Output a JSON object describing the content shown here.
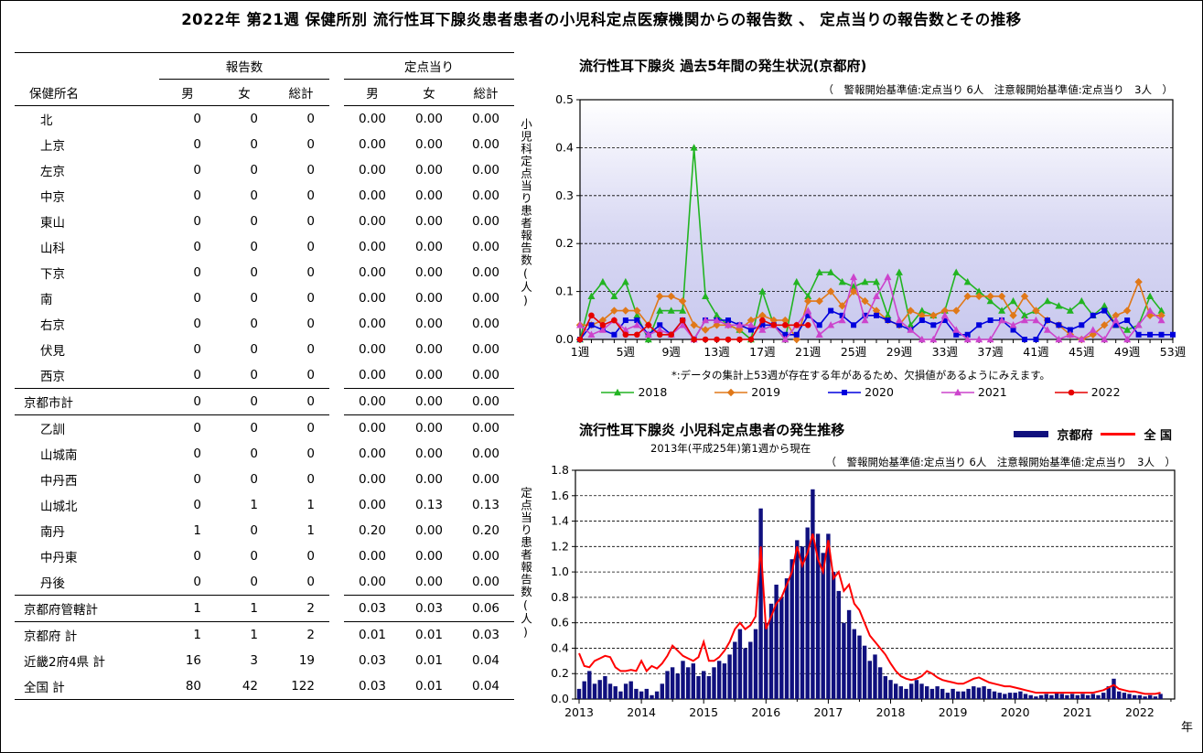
{
  "page_title": "2022年 第21週 保健所別 流行性耳下腺炎患者患者の小児科定点医療機関からの報告数 、 定点当りの報告数とその推移",
  "table": {
    "group_headers": {
      "reports": "報告数",
      "per_sentinel": "定点当り"
    },
    "col_headers": {
      "name": "保健所名",
      "male": "男",
      "female": "女",
      "total": "総計"
    },
    "rows": [
      {
        "label": "北",
        "indent": true,
        "sep": false,
        "values": [
          "0",
          "0",
          "0",
          "0.00",
          "0.00",
          "0.00"
        ]
      },
      {
        "label": "上京",
        "indent": true,
        "sep": false,
        "values": [
          "0",
          "0",
          "0",
          "0.00",
          "0.00",
          "0.00"
        ]
      },
      {
        "label": "左京",
        "indent": true,
        "sep": false,
        "values": [
          "0",
          "0",
          "0",
          "0.00",
          "0.00",
          "0.00"
        ]
      },
      {
        "label": "中京",
        "indent": true,
        "sep": false,
        "values": [
          "0",
          "0",
          "0",
          "0.00",
          "0.00",
          "0.00"
        ]
      },
      {
        "label": "東山",
        "indent": true,
        "sep": false,
        "values": [
          "0",
          "0",
          "0",
          "0.00",
          "0.00",
          "0.00"
        ]
      },
      {
        "label": "山科",
        "indent": true,
        "sep": false,
        "values": [
          "0",
          "0",
          "0",
          "0.00",
          "0.00",
          "0.00"
        ]
      },
      {
        "label": "下京",
        "indent": true,
        "sep": false,
        "values": [
          "0",
          "0",
          "0",
          "0.00",
          "0.00",
          "0.00"
        ]
      },
      {
        "label": "南",
        "indent": true,
        "sep": false,
        "values": [
          "0",
          "0",
          "0",
          "0.00",
          "0.00",
          "0.00"
        ]
      },
      {
        "label": "右京",
        "indent": true,
        "sep": false,
        "values": [
          "0",
          "0",
          "0",
          "0.00",
          "0.00",
          "0.00"
        ]
      },
      {
        "label": "伏見",
        "indent": true,
        "sep": false,
        "values": [
          "0",
          "0",
          "0",
          "0.00",
          "0.00",
          "0.00"
        ]
      },
      {
        "label": "西京",
        "indent": true,
        "sep": false,
        "values": [
          "0",
          "0",
          "0",
          "0.00",
          "0.00",
          "0.00"
        ]
      },
      {
        "label": "京都市計",
        "indent": false,
        "sep": true,
        "values": [
          "0",
          "0",
          "0",
          "0.00",
          "0.00",
          "0.00"
        ]
      },
      {
        "label": "乙訓",
        "indent": true,
        "sep": true,
        "values": [
          "0",
          "0",
          "0",
          "0.00",
          "0.00",
          "0.00"
        ]
      },
      {
        "label": "山城南",
        "indent": true,
        "sep": false,
        "values": [
          "0",
          "0",
          "0",
          "0.00",
          "0.00",
          "0.00"
        ]
      },
      {
        "label": "中丹西",
        "indent": true,
        "sep": false,
        "values": [
          "0",
          "0",
          "0",
          "0.00",
          "0.00",
          "0.00"
        ]
      },
      {
        "label": "山城北",
        "indent": true,
        "sep": false,
        "values": [
          "0",
          "1",
          "1",
          "0.00",
          "0.13",
          "0.13"
        ]
      },
      {
        "label": "南丹",
        "indent": true,
        "sep": false,
        "values": [
          "1",
          "0",
          "1",
          "0.20",
          "0.00",
          "0.20"
        ]
      },
      {
        "label": "中丹東",
        "indent": true,
        "sep": false,
        "values": [
          "0",
          "0",
          "0",
          "0.00",
          "0.00",
          "0.00"
        ]
      },
      {
        "label": "丹後",
        "indent": true,
        "sep": false,
        "values": [
          "0",
          "0",
          "0",
          "0.00",
          "0.00",
          "0.00"
        ]
      },
      {
        "label": "京都府管轄計",
        "indent": false,
        "sep": true,
        "values": [
          "1",
          "1",
          "2",
          "0.03",
          "0.03",
          "0.06"
        ]
      },
      {
        "label": "京都府 計",
        "indent": false,
        "sep": true,
        "values": [
          "1",
          "1",
          "2",
          "0.01",
          "0.01",
          "0.03"
        ]
      },
      {
        "label": "近畿2府4県 計",
        "indent": false,
        "sep": false,
        "values": [
          "16",
          "3",
          "19",
          "0.03",
          "0.01",
          "0.04"
        ]
      },
      {
        "label": "全国 計",
        "indent": false,
        "sep": false,
        "values": [
          "80",
          "42",
          "122",
          "0.03",
          "0.01",
          "0.04"
        ]
      }
    ]
  },
  "chart_data": [
    {
      "type": "line",
      "title": "流行性耳下腺炎 過去5年間の発生状況(京都府)",
      "note": "（　警報開始基準値:定点当り 6人　注意報開始基準値:定点当り　3人　）",
      "ylabel": "小児科定点当り患者報告数(人)",
      "footnote": "*:データの集計上53週が存在する年があるため、欠損値があるようにみえます。",
      "ylim": [
        0,
        0.5
      ],
      "yticks": [
        0.0,
        0.1,
        0.2,
        0.3,
        0.4,
        0.5
      ],
      "x_unit": "week 1-53",
      "x_tick_labels": [
        "1週",
        "5週",
        "9週",
        "13週",
        "17週",
        "21週",
        "25週",
        "29週",
        "33週",
        "37週",
        "41週",
        "45週",
        "49週",
        "53週"
      ],
      "grid": "horizontal-dashed",
      "legend_position": "bottom",
      "plot_bg_gradient": [
        "#ffffff",
        "#d8d8f3",
        "#c9c9ee"
      ],
      "series": [
        {
          "name": "2018",
          "color": "#22b422",
          "marker": "triangle",
          "values": [
            0.0,
            0.09,
            0.12,
            0.09,
            0.12,
            0.05,
            0.0,
            0.06,
            0.06,
            0.06,
            0.4,
            0.09,
            0.05,
            0.03,
            0.02,
            0.0,
            0.1,
            0.03,
            0.0,
            0.12,
            0.09,
            0.14,
            0.14,
            0.12,
            0.11,
            0.12,
            0.12,
            0.05,
            0.14,
            0.03,
            0.06,
            0.05,
            0.06,
            0.14,
            0.12,
            0.1,
            0.08,
            0.06,
            0.08,
            0.05,
            0.06,
            0.08,
            0.07,
            0.06,
            0.08,
            0.05,
            0.07,
            0.03,
            0.02,
            0.03,
            0.09,
            0.06
          ]
        },
        {
          "name": "2019",
          "color": "#e07818",
          "marker": "diamond",
          "values": [
            0.03,
            0.03,
            0.04,
            0.06,
            0.06,
            0.06,
            0.03,
            0.09,
            0.09,
            0.08,
            0.03,
            0.02,
            0.03,
            0.03,
            0.02,
            0.04,
            0.05,
            0.04,
            0.04,
            0.0,
            0.08,
            0.08,
            0.1,
            0.07,
            0.1,
            0.08,
            0.06,
            0.04,
            0.03,
            0.06,
            0.05,
            0.05,
            0.06,
            0.06,
            0.09,
            0.09,
            0.09,
            0.09,
            0.05,
            0.09,
            0.06,
            0.04,
            0.03,
            0.01,
            0.0,
            0.01,
            0.03,
            0.05,
            0.06,
            0.12,
            0.05,
            0.05
          ]
        },
        {
          "name": "2020",
          "color": "#0000dd",
          "marker": "square",
          "values": [
            0.0,
            0.03,
            0.02,
            0.01,
            0.04,
            0.04,
            0.01,
            0.03,
            0.01,
            0.04,
            0.0,
            0.04,
            0.04,
            0.04,
            0.03,
            0.02,
            0.03,
            0.03,
            0.01,
            0.01,
            0.05,
            0.03,
            0.06,
            0.05,
            0.03,
            0.05,
            0.05,
            0.04,
            0.03,
            0.02,
            0.04,
            0.03,
            0.04,
            0.01,
            0.01,
            0.03,
            0.04,
            0.04,
            0.02,
            0.0,
            0.0,
            0.04,
            0.03,
            0.02,
            0.03,
            0.05,
            0.06,
            0.03,
            0.04,
            0.01,
            0.01,
            0.01,
            0.01
          ]
        },
        {
          "name": "2021",
          "color": "#cc44cc",
          "marker": "triangle",
          "values": [
            0.03,
            0.01,
            0.02,
            0.04,
            0.02,
            0.03,
            0.01,
            0.02,
            0.01,
            0.03,
            0.0,
            0.04,
            0.04,
            0.03,
            0.03,
            0.03,
            0.02,
            0.03,
            0.0,
            0.03,
            0.06,
            0.01,
            0.03,
            0.04,
            0.13,
            0.04,
            0.09,
            0.13,
            0.04,
            0.02,
            0.0,
            0.0,
            0.05,
            0.02,
            0.0,
            0.0,
            0.0,
            0.04,
            0.03,
            0.04,
            0.04,
            0.02,
            0.0,
            0.01,
            0.0,
            0.02,
            0.0,
            0.04,
            0.0,
            0.03,
            0.06,
            0.04
          ]
        },
        {
          "name": "2022",
          "color": "#e60000",
          "marker": "circle",
          "values": [
            0.0,
            0.05,
            0.03,
            0.04,
            0.01,
            0.01,
            0.03,
            0.01,
            0.01,
            0.04,
            0.0,
            0.0,
            0.0,
            0.0,
            0.0,
            0.0,
            0.04,
            0.03,
            0.03,
            0.03,
            0.03
          ]
        }
      ]
    },
    {
      "type": "area",
      "title": "流行性耳下腺炎 小児科定点患者の発生推移",
      "subtitle": "2013年(平成25年)第1週から現在",
      "note": "（　警報開始基準値:定点当り 6人　注意報開始基準値:定点当り　3人　）",
      "ylabel": "定点当り患者報告数(人)",
      "xlabel": "年",
      "ylim": [
        0,
        1.8
      ],
      "yticks": [
        0.0,
        0.2,
        0.4,
        0.6,
        0.8,
        1.0,
        1.2,
        1.4,
        1.6,
        1.8
      ],
      "x_tick_labels": [
        "2013",
        "2014",
        "2015",
        "2016",
        "2017",
        "2018",
        "2019",
        "2020",
        "2021",
        "2022"
      ],
      "x_start_year": 2013,
      "x_step": "monthly (approximate reading of weekly data)",
      "grid": "horizontal-dashed",
      "legend_position": "top-right",
      "series": [
        {
          "name": "京都府",
          "color": "#10107e",
          "style": "bar",
          "values": [
            0.08,
            0.14,
            0.22,
            0.12,
            0.15,
            0.18,
            0.12,
            0.1,
            0.06,
            0.12,
            0.14,
            0.08,
            0.06,
            0.08,
            0.03,
            0.06,
            0.12,
            0.22,
            0.25,
            0.2,
            0.3,
            0.25,
            0.28,
            0.18,
            0.22,
            0.18,
            0.25,
            0.3,
            0.28,
            0.35,
            0.45,
            0.55,
            0.4,
            0.45,
            0.55,
            1.5,
            0.6,
            0.75,
            0.9,
            0.8,
            0.95,
            1.1,
            1.25,
            1.2,
            1.35,
            1.65,
            1.3,
            1.15,
            1.3,
            1.0,
            0.85,
            0.6,
            0.7,
            0.55,
            0.5,
            0.42,
            0.3,
            0.35,
            0.25,
            0.18,
            0.15,
            0.12,
            0.1,
            0.08,
            0.12,
            0.15,
            0.12,
            0.1,
            0.08,
            0.1,
            0.08,
            0.05,
            0.08,
            0.06,
            0.06,
            0.08,
            0.1,
            0.09,
            0.1,
            0.08,
            0.06,
            0.05,
            0.04,
            0.05,
            0.05,
            0.06,
            0.04,
            0.03,
            0.02,
            0.03,
            0.04,
            0.03,
            0.05,
            0.04,
            0.03,
            0.04,
            0.03,
            0.04,
            0.03,
            0.04,
            0.03,
            0.05,
            0.1,
            0.16,
            0.06,
            0.05,
            0.04,
            0.03,
            0.03,
            0.02,
            0.03,
            0.02,
            0.04
          ]
        },
        {
          "name": "全 国",
          "color": "#ff0000",
          "style": "line",
          "values": [
            0.36,
            0.26,
            0.25,
            0.3,
            0.32,
            0.34,
            0.33,
            0.25,
            0.22,
            0.22,
            0.23,
            0.22,
            0.3,
            0.22,
            0.26,
            0.24,
            0.28,
            0.34,
            0.42,
            0.38,
            0.34,
            0.32,
            0.3,
            0.33,
            0.45,
            0.3,
            0.3,
            0.33,
            0.38,
            0.45,
            0.55,
            0.6,
            0.55,
            0.58,
            0.65,
            1.2,
            0.55,
            0.65,
            0.75,
            0.8,
            0.9,
            1.0,
            1.2,
            1.05,
            1.15,
            1.3,
            1.1,
            1.0,
            1.25,
            0.95,
            1.0,
            0.85,
            0.9,
            0.75,
            0.7,
            0.6,
            0.5,
            0.45,
            0.4,
            0.35,
            0.28,
            0.22,
            0.18,
            0.16,
            0.15,
            0.16,
            0.18,
            0.22,
            0.2,
            0.17,
            0.15,
            0.14,
            0.13,
            0.12,
            0.12,
            0.14,
            0.16,
            0.17,
            0.15,
            0.13,
            0.12,
            0.11,
            0.1,
            0.1,
            0.09,
            0.08,
            0.07,
            0.06,
            0.05,
            0.05,
            0.05,
            0.05,
            0.05,
            0.05,
            0.05,
            0.05,
            0.05,
            0.05,
            0.05,
            0.05,
            0.06,
            0.07,
            0.09,
            0.11,
            0.08,
            0.07,
            0.06,
            0.06,
            0.05,
            0.04,
            0.04,
            0.04,
            0.05
          ]
        }
      ]
    }
  ]
}
